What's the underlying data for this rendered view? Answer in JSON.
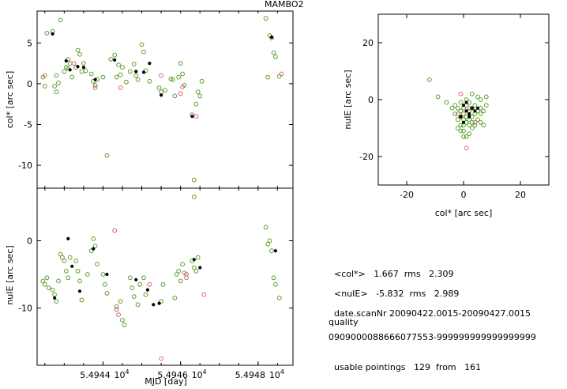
{
  "title": "MAMBO2",
  "colors": {
    "green": "#5aa02c",
    "red": "#e0607a",
    "black": "#000000"
  },
  "chart_data": [
    {
      "type": "scatter",
      "panel": "top-left",
      "ylabel": "col* [arc sec]",
      "xlim": [
        54942.3,
        54948.9
      ],
      "ylim": [
        -12.8,
        8.9
      ],
      "yticks": [
        5,
        0,
        -5,
        -10
      ],
      "ytick_labels": [
        "5",
        "0",
        "-5",
        "-10"
      ],
      "series": [
        {
          "color": "green",
          "points": [
            [
              54942.45,
              0.8
            ],
            [
              54942.5,
              -0.3
            ],
            [
              54942.55,
              6.2
            ],
            [
              54942.7,
              6.4
            ],
            [
              54942.75,
              -0.3
            ],
            [
              54942.8,
              -1.0
            ],
            [
              54942.8,
              1.0
            ],
            [
              54942.85,
              0.1
            ],
            [
              54942.9,
              7.8
            ],
            [
              54943.0,
              1.5
            ],
            [
              54943.05,
              2.0
            ],
            [
              54943.1,
              3.0
            ],
            [
              54943.1,
              1.9
            ],
            [
              54943.15,
              2.5
            ],
            [
              54943.2,
              0.8
            ],
            [
              54943.3,
              2.0
            ],
            [
              54943.35,
              4.1
            ],
            [
              54943.4,
              3.6
            ],
            [
              54943.45,
              1.5
            ],
            [
              54943.5,
              2.5
            ],
            [
              54943.55,
              1.6
            ],
            [
              54943.7,
              1.2
            ],
            [
              54943.75,
              0.3
            ],
            [
              54943.8,
              -0.2
            ],
            [
              54943.85,
              0.5
            ],
            [
              54944.0,
              0.8
            ],
            [
              54944.1,
              -8.8
            ],
            [
              54944.2,
              3.0
            ],
            [
              54944.3,
              3.5
            ],
            [
              54944.35,
              0.8
            ],
            [
              54944.4,
              2.3
            ],
            [
              54944.45,
              1.1
            ],
            [
              54944.5,
              2.0
            ],
            [
              54944.6,
              0.2
            ],
            [
              54944.7,
              1.5
            ],
            [
              54944.8,
              2.4
            ],
            [
              54944.85,
              1.0
            ],
            [
              54944.9,
              0.5
            ],
            [
              54945.0,
              4.8
            ],
            [
              54945.05,
              3.9
            ],
            [
              54945.1,
              1.6
            ],
            [
              54945.2,
              0.3
            ],
            [
              54945.45,
              -0.5
            ],
            [
              54945.5,
              -1.0
            ],
            [
              54945.6,
              -0.8
            ],
            [
              54945.75,
              0.6
            ],
            [
              54945.8,
              0.5
            ],
            [
              54945.85,
              -1.5
            ],
            [
              54945.95,
              0.8
            ],
            [
              54946.0,
              2.5
            ],
            [
              54946.05,
              1.2
            ],
            [
              54946.1,
              -0.2
            ],
            [
              54946.3,
              -3.8
            ],
            [
              54946.35,
              -11.8
            ],
            [
              54946.4,
              -2.5
            ],
            [
              54946.45,
              -1.0
            ],
            [
              54946.5,
              -1.5
            ],
            [
              54946.55,
              0.3
            ],
            [
              54948.2,
              8.0
            ],
            [
              54948.25,
              0.8
            ],
            [
              54948.3,
              5.9
            ],
            [
              54948.35,
              5.6
            ],
            [
              54948.4,
              3.8
            ],
            [
              54948.45,
              3.3
            ],
            [
              54948.55,
              0.9
            ]
          ]
        },
        {
          "color": "red",
          "points": [
            [
              54942.5,
              1.0
            ],
            [
              54943.25,
              2.5
            ],
            [
              54943.8,
              -0.5
            ],
            [
              54944.45,
              -0.5
            ],
            [
              54945.5,
              1.0
            ],
            [
              54946.0,
              -1.2
            ],
            [
              54946.05,
              -0.4
            ],
            [
              54946.4,
              -4.0
            ],
            [
              54948.6,
              1.2
            ]
          ]
        },
        {
          "color": "black",
          "points": [
            [
              54942.7,
              6.1
            ],
            [
              54943.05,
              2.8
            ],
            [
              54943.15,
              1.7
            ],
            [
              54943.35,
              2.1
            ],
            [
              54943.5,
              2.0
            ],
            [
              54943.8,
              0.5
            ],
            [
              54944.3,
              2.9
            ],
            [
              54944.85,
              1.5
            ],
            [
              54945.05,
              1.4
            ],
            [
              54945.2,
              2.5
            ],
            [
              54945.5,
              -1.4
            ],
            [
              54946.3,
              -4.0
            ],
            [
              54948.35,
              5.7
            ]
          ]
        }
      ]
    },
    {
      "type": "scatter",
      "panel": "bottom-left",
      "xlabel": "MJD [day]",
      "ylabel": "nuIE [arc sec]",
      "xlim": [
        54942.3,
        54948.9
      ],
      "ylim": [
        -18.5,
        7.8
      ],
      "yticks": [
        0,
        -10
      ],
      "ytick_labels": [
        "0",
        "-10"
      ],
      "xtick_labels": [
        "5.4944",
        "5.4946",
        "5.4948"
      ],
      "xtick_values": [
        54944,
        54946,
        54948
      ],
      "xtick_multiplier": "10^4",
      "series": [
        {
          "color": "green",
          "points": [
            [
              54942.45,
              -6.0
            ],
            [
              54942.5,
              -6.5
            ],
            [
              54942.55,
              -5.5
            ],
            [
              54942.6,
              -7.0
            ],
            [
              54942.7,
              -7.3
            ],
            [
              54942.75,
              -8.0
            ],
            [
              54942.8,
              -9.0
            ],
            [
              54942.85,
              -6.0
            ],
            [
              54942.9,
              -2.0
            ],
            [
              54942.95,
              -2.5
            ],
            [
              54943.0,
              -3.0
            ],
            [
              54943.05,
              -4.5
            ],
            [
              54943.1,
              -5.5
            ],
            [
              54943.15,
              -2.5
            ],
            [
              54943.3,
              -3.0
            ],
            [
              54943.35,
              -4.5
            ],
            [
              54943.4,
              -6.0
            ],
            [
              54943.45,
              -8.8
            ],
            [
              54943.6,
              -5.0
            ],
            [
              54943.7,
              -1.5
            ],
            [
              54943.75,
              0.3
            ],
            [
              54943.8,
              -0.8
            ],
            [
              54943.85,
              -3.5
            ],
            [
              54944.0,
              -5.0
            ],
            [
              54944.05,
              -6.5
            ],
            [
              54944.1,
              -7.8
            ],
            [
              54944.35,
              -9.8
            ],
            [
              54944.45,
              -9.0
            ],
            [
              54944.5,
              -11.8
            ],
            [
              54944.55,
              -12.5
            ],
            [
              54944.7,
              -5.5
            ],
            [
              54944.75,
              -7.0
            ],
            [
              54944.8,
              -8.3
            ],
            [
              54944.9,
              -9.5
            ],
            [
              54944.95,
              -6.5
            ],
            [
              54945.05,
              -5.5
            ],
            [
              54945.1,
              -8.0
            ],
            [
              54945.5,
              -9.0
            ],
            [
              54945.55,
              -6.5
            ],
            [
              54945.85,
              -8.5
            ],
            [
              54945.9,
              -5.0
            ],
            [
              54945.95,
              -4.5
            ],
            [
              54946.0,
              -6.0
            ],
            [
              54946.05,
              -3.5
            ],
            [
              54946.15,
              -5.0
            ],
            [
              54946.3,
              -3.0
            ],
            [
              54946.35,
              -4.0
            ],
            [
              54946.35,
              6.5
            ],
            [
              54946.4,
              -4.5
            ],
            [
              54946.45,
              -2.5
            ],
            [
              54948.2,
              2.0
            ],
            [
              54948.25,
              -0.5
            ],
            [
              54948.3,
              0.0
            ],
            [
              54948.35,
              -1.5
            ],
            [
              54948.4,
              -5.5
            ],
            [
              54948.45,
              -6.5
            ],
            [
              54948.55,
              -8.5
            ]
          ]
        },
        {
          "color": "red",
          "points": [
            [
              54944.3,
              1.5
            ],
            [
              54944.35,
              -10.2
            ],
            [
              54944.4,
              -11.0
            ],
            [
              54945.2,
              -6.5
            ],
            [
              54945.5,
              -17.5
            ],
            [
              54946.1,
              -4.8
            ],
            [
              54946.15,
              -5.5
            ],
            [
              54946.6,
              -8.0
            ]
          ]
        },
        {
          "color": "black",
          "points": [
            [
              54942.75,
              -8.5
            ],
            [
              54943.1,
              0.3
            ],
            [
              54943.2,
              -3.8
            ],
            [
              54943.4,
              -7.5
            ],
            [
              54943.75,
              -1.2
            ],
            [
              54944.1,
              -5.0
            ],
            [
              54944.85,
              -5.8
            ],
            [
              54945.15,
              -7.3
            ],
            [
              54945.3,
              -9.5
            ],
            [
              54945.45,
              -9.3
            ],
            [
              54946.35,
              -2.8
            ],
            [
              54946.5,
              -4.0
            ],
            [
              54948.45,
              -1.5
            ]
          ]
        }
      ]
    },
    {
      "type": "scatter",
      "panel": "right",
      "xlabel": "col* [arc sec]",
      "ylabel": "nuIE [arc sec]",
      "xlim": [
        -30,
        30
      ],
      "ylim": [
        -30,
        30
      ],
      "xticks": [
        -20,
        0,
        20
      ],
      "yticks": [
        20,
        0,
        -20
      ],
      "series": [
        {
          "color": "green",
          "points": [
            [
              -12,
              7
            ],
            [
              -9,
              1
            ],
            [
              -6,
              -1
            ],
            [
              -4,
              -3
            ],
            [
              -3,
              -5
            ],
            [
              -2,
              -7
            ],
            [
              -1,
              -9
            ],
            [
              0,
              -11
            ],
            [
              1,
              -13
            ],
            [
              2,
              -12
            ],
            [
              3,
              -10
            ],
            [
              4,
              -9
            ],
            [
              5,
              -7
            ],
            [
              6,
              -5
            ],
            [
              7,
              -4
            ],
            [
              8,
              -2
            ],
            [
              -2,
              -3
            ],
            [
              -1,
              -4
            ],
            [
              0,
              -5
            ],
            [
              1,
              -6
            ],
            [
              2,
              -7
            ],
            [
              3,
              -6
            ],
            [
              4,
              -5
            ],
            [
              0,
              -3
            ],
            [
              1,
              -2
            ],
            [
              2,
              -1
            ],
            [
              3,
              -3
            ],
            [
              4,
              -2
            ],
            [
              5,
              -4
            ],
            [
              6,
              -3
            ],
            [
              -1,
              -6
            ],
            [
              0,
              -7
            ],
            [
              1,
              -8
            ],
            [
              2,
              -9
            ],
            [
              3,
              -8
            ],
            [
              -3,
              -2
            ],
            [
              5,
              1
            ],
            [
              6,
              0
            ],
            [
              3,
              2
            ],
            [
              8,
              1
            ],
            [
              -2,
              -10
            ],
            [
              0,
              -9
            ],
            [
              2,
              -4
            ],
            [
              1,
              0
            ],
            [
              -1,
              -1
            ],
            [
              7,
              -9
            ],
            [
              6,
              -8
            ],
            [
              0,
              -13
            ],
            [
              -1,
              -11
            ]
          ]
        },
        {
          "color": "red",
          "points": [
            [
              1,
              -17
            ],
            [
              -1,
              2
            ],
            [
              2,
              -3
            ],
            [
              4,
              -8
            ],
            [
              -2,
              -5
            ]
          ]
        },
        {
          "color": "black",
          "points": [
            [
              0,
              -2
            ],
            [
              1,
              -4
            ],
            [
              2,
              -5
            ],
            [
              3,
              -3
            ],
            [
              -1,
              -6
            ],
            [
              0,
              -8
            ],
            [
              2,
              -6
            ],
            [
              4,
              -4
            ],
            [
              1,
              -1
            ],
            [
              5,
              -3
            ]
          ]
        }
      ]
    }
  ],
  "stats": {
    "col_label": "<col*>",
    "col_mean": "1.667",
    "rms_label": "rms",
    "col_rms": "2.309",
    "nuie_label": "<nuIE>",
    "nuie_mean": "-5.832",
    "nuie_rms": "2.989",
    "date_label": "date.scanNr",
    "date_value": "20090422.0015-20090427.0015",
    "quality_label": "quality",
    "quality_value": "0909000088666077553-999999999999999999",
    "usable_label": "usable pointings",
    "usable_count": "129",
    "from_label": "from",
    "usable_total": "161"
  }
}
